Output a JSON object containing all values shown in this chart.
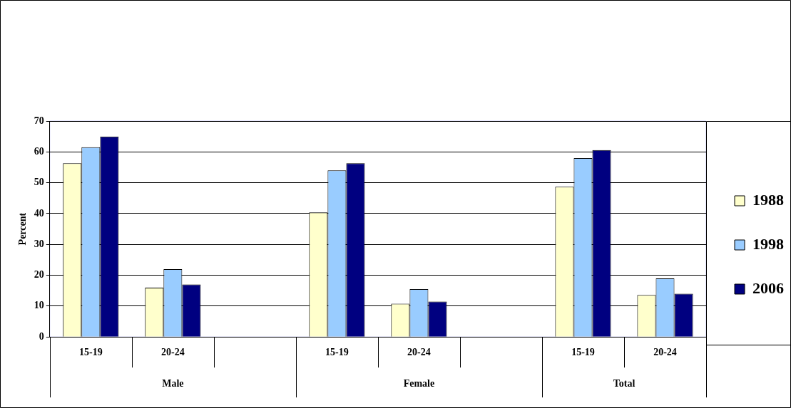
{
  "chart_data": {
    "type": "bar",
    "ylabel": "Percent",
    "categories": [
      "15-19",
      "20-24",
      null,
      "15-19",
      "20-24",
      null,
      "15-19",
      "20-24"
    ],
    "annotations": [
      "Male",
      "Female",
      "Total"
    ],
    "series": [
      {
        "name": "1988",
        "color": "#ffffcc",
        "values": [
          56.3,
          16,
          null,
          40.4,
          10.8,
          null,
          48.7,
          13.6
        ]
      },
      {
        "name": "1998",
        "color": "#99ccff",
        "values": [
          61.5,
          22,
          null,
          54,
          15.5,
          null,
          58,
          19
        ]
      },
      {
        "name": "2006",
        "color": "#000080",
        "values": [
          65,
          17,
          null,
          56.3,
          11.5,
          null,
          60.6,
          14
        ]
      }
    ],
    "ylim": [
      0,
      70
    ],
    "yticks": [
      0,
      10,
      20,
      30,
      40,
      50,
      60,
      70
    ],
    "grid": "y",
    "legend": "right"
  }
}
